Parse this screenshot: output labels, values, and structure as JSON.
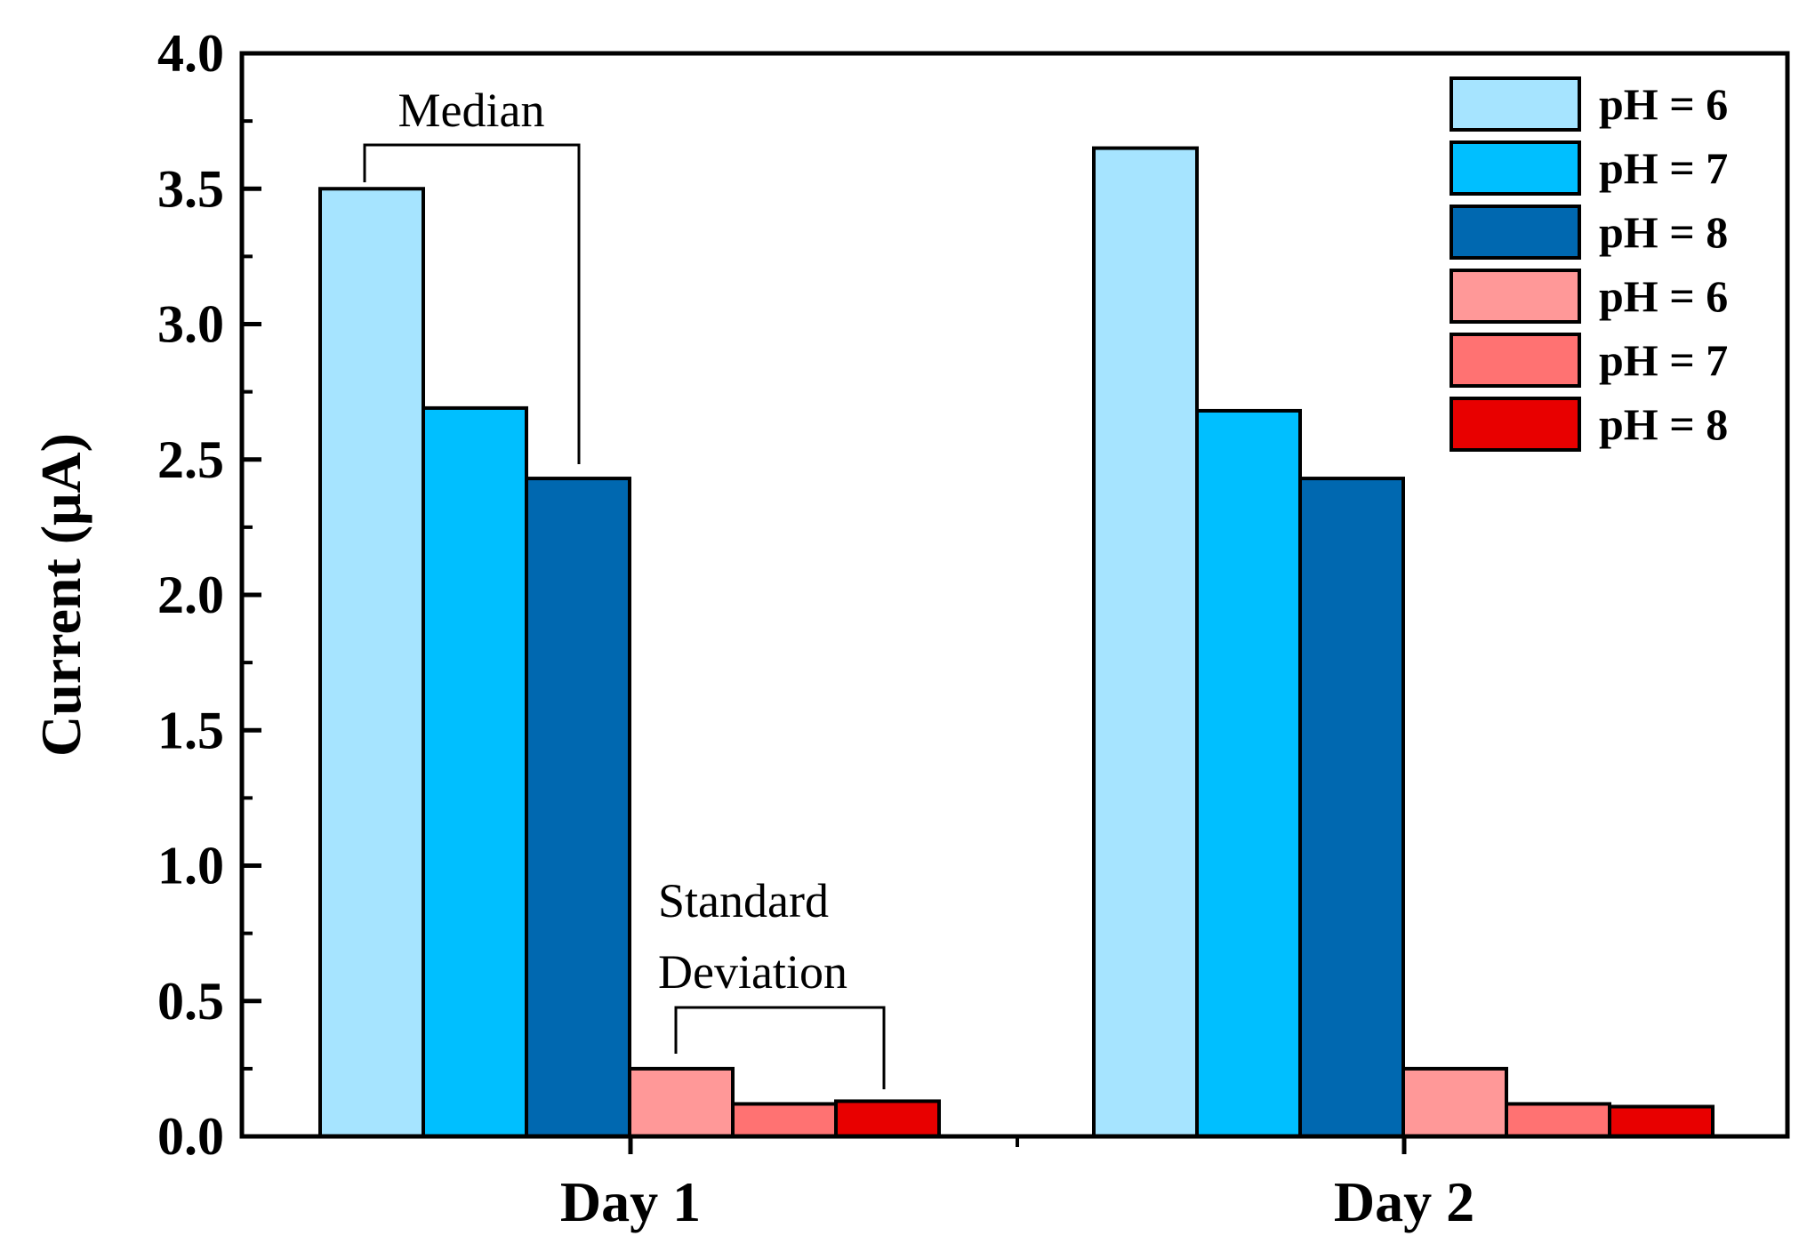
{
  "chart_data": {
    "type": "bar",
    "title": "",
    "xlabel": "",
    "ylabel": "Current (μA)",
    "ylim": [
      0,
      4.0
    ],
    "yticks": [
      "0.0",
      "0.5",
      "1.0",
      "1.5",
      "2.0",
      "2.5",
      "3.0",
      "3.5",
      "4.0"
    ],
    "categories": [
      "Day 1",
      "Day 2"
    ],
    "grid": false,
    "legend_position": "top-right",
    "series": [
      {
        "name": "pH = 6",
        "color": "#A6E4FF",
        "values": [
          3.5,
          3.65
        ]
      },
      {
        "name": "pH = 7",
        "color": "#00BFFF",
        "values": [
          2.69,
          2.68
        ]
      },
      {
        "name": "pH = 8",
        "color": "#0068B0",
        "values": [
          2.43,
          2.43
        ]
      },
      {
        "name": "pH = 6",
        "color": "#FF9898",
        "values": [
          0.25,
          0.25
        ]
      },
      {
        "name": "pH = 7",
        "color": "#FF7272",
        "values": [
          0.12,
          0.12
        ]
      },
      {
        "name": "pH = 8",
        "color": "#E80000",
        "values": [
          0.13,
          0.11
        ]
      }
    ],
    "annotations": [
      {
        "id": "median",
        "lines": [
          "Median"
        ]
      },
      {
        "id": "stddev",
        "lines": [
          "Standard",
          "Deviation"
        ]
      }
    ]
  }
}
